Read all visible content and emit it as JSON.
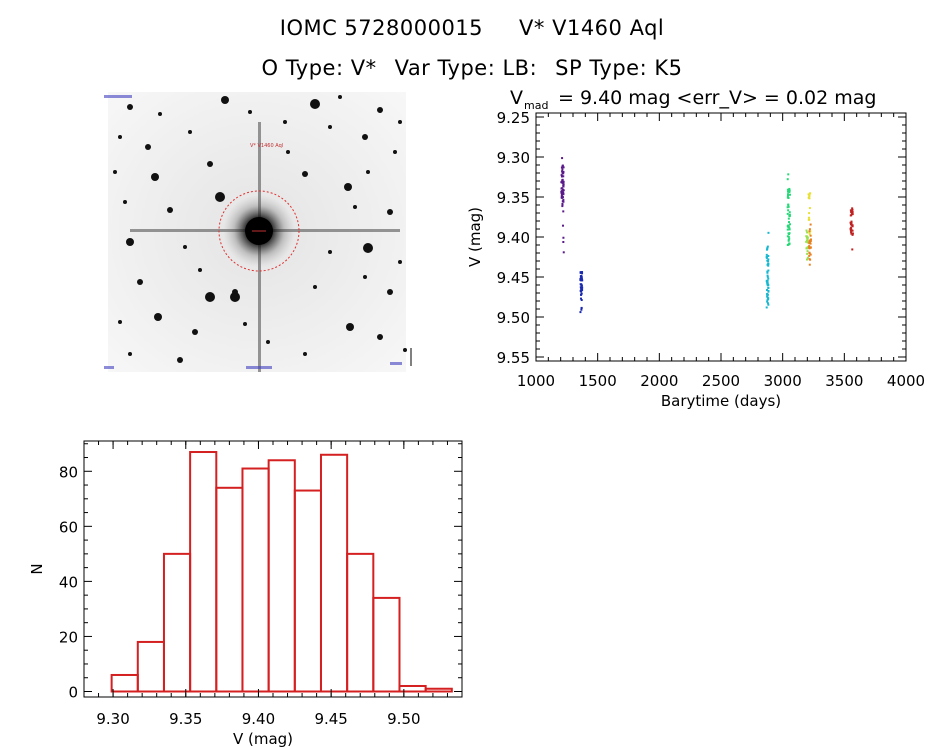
{
  "header": {
    "object_id": "IOMC 5728000015",
    "star_name": "V* V1460 Aql",
    "o_type": "O Type: V*",
    "var_type": "Var Type: LB:",
    "sp_type": "SP Type: K5"
  },
  "lightcurve_header": {
    "v_prefix": "V",
    "v_subscript": "mad",
    "stats_text": "= 9.40 mag <err_V> = 0.02 mag"
  },
  "image_panel": {
    "target_label": "V* V1460 Aql"
  },
  "colors": {
    "histogram": "#d42020",
    "frame": "#000000",
    "target_circle": "#e03030"
  },
  "chart_data": [
    {
      "type": "scatter",
      "xlabel": "Barytime (days)",
      "ylabel": "V (mag)",
      "xlim": [
        1000,
        4000
      ],
      "ylim": [
        9.555,
        9.245
      ],
      "y_inverted": true,
      "xticks": [
        1000,
        1500,
        2000,
        2500,
        3000,
        3500,
        4000
      ],
      "xtick_labels": [
        "1000",
        "1500",
        "2000",
        "2500",
        "3000",
        "3500",
        "4000"
      ],
      "yticks": [
        9.25,
        9.3,
        9.35,
        9.4,
        9.45,
        9.5,
        9.55
      ],
      "ytick_labels": [
        "9.25",
        "9.30",
        "9.35",
        "9.40",
        "9.45",
        "9.50",
        "9.55"
      ],
      "series": [
        {
          "color": "#5a1a8a",
          "x_range": [
            1205,
            1225
          ],
          "y_range": [
            9.3,
            9.45
          ],
          "dense_range": [
            9.31,
            9.36
          ],
          "count": 60
        },
        {
          "color": "#1a2ab0",
          "x_range": [
            1360,
            1375
          ],
          "y_range": [
            9.44,
            9.51
          ],
          "dense_range": [
            9.44,
            9.48
          ],
          "count": 40
        },
        {
          "color": "#18b8d0",
          "x_range": [
            2870,
            2885
          ],
          "y_range": [
            9.39,
            9.5
          ],
          "dense_range": [
            9.41,
            9.49
          ],
          "count": 50
        },
        {
          "color": "#28d878",
          "x_range": [
            3040,
            3060
          ],
          "y_range": [
            9.32,
            9.42
          ],
          "dense_range": [
            9.34,
            9.41
          ],
          "count": 50
        },
        {
          "color": "#9ae050",
          "x_range": [
            3190,
            3205
          ],
          "y_range": [
            9.38,
            9.43
          ],
          "dense_range": [
            9.39,
            9.42
          ],
          "count": 20
        },
        {
          "color": "#e8e030",
          "x_range": [
            3210,
            3225
          ],
          "y_range": [
            9.33,
            9.42
          ],
          "dense_range": [
            9.34,
            9.38
          ],
          "count": 15
        },
        {
          "color": "#e88020",
          "x_range": [
            3215,
            3230
          ],
          "y_range": [
            9.38,
            9.44
          ],
          "dense_range": [
            9.39,
            9.43
          ],
          "count": 25
        },
        {
          "color": "#c02020",
          "x_range": [
            3550,
            3570
          ],
          "y_range": [
            9.35,
            9.42
          ],
          "dense_range": [
            9.36,
            9.4
          ],
          "count": 30
        }
      ]
    },
    {
      "type": "bar",
      "xlabel": "V (mag)",
      "ylabel": "N",
      "xlim": [
        9.28,
        9.54
      ],
      "ylim": [
        -2,
        91
      ],
      "xticks": [
        9.3,
        9.35,
        9.4,
        9.45,
        9.5
      ],
      "xtick_labels": [
        "9.30",
        "9.35",
        "9.40",
        "9.45",
        "9.50"
      ],
      "yticks": [
        0,
        20,
        40,
        60,
        80
      ],
      "ytick_labels": [
        "0",
        "20",
        "40",
        "60",
        "80"
      ],
      "bin_start": 9.299,
      "bin_width": 0.018,
      "values": [
        6,
        18,
        50,
        87,
        74,
        81,
        84,
        73,
        86,
        50,
        34,
        2,
        1
      ]
    }
  ]
}
